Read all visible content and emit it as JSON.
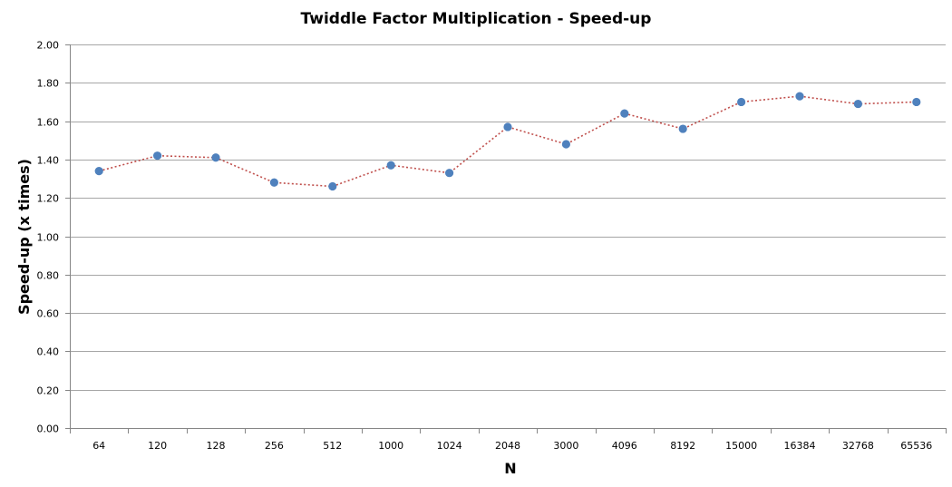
{
  "chart_data": {
    "type": "line",
    "title": "Twiddle Factor Multiplication - Speed-up",
    "xlabel": "N",
    "ylabel": "Speed-up (x times)",
    "categories": [
      "64",
      "120",
      "128",
      "256",
      "512",
      "1000",
      "1024",
      "2048",
      "3000",
      "4096",
      "8192",
      "15000",
      "16384",
      "32768",
      "65536"
    ],
    "series": [
      {
        "values": [
          1.34,
          1.42,
          1.41,
          1.28,
          1.26,
          1.37,
          1.33,
          1.57,
          1.48,
          1.64,
          1.56,
          1.7,
          1.73,
          1.69,
          1.7
        ],
        "marker_color": "#4f81bd",
        "line_color": "#c0504d",
        "line_style": "dotted"
      }
    ],
    "ylim": [
      0,
      2.0
    ],
    "yticks": [
      "0.00",
      "0.20",
      "0.40",
      "0.60",
      "0.80",
      "1.00",
      "1.20",
      "1.40",
      "1.60",
      "1.80",
      "2.00"
    ],
    "grid": true,
    "legend": "none"
  },
  "colors": {
    "gridline": "#a6a6a6",
    "axis": "#868686",
    "background": "#ffffff"
  }
}
